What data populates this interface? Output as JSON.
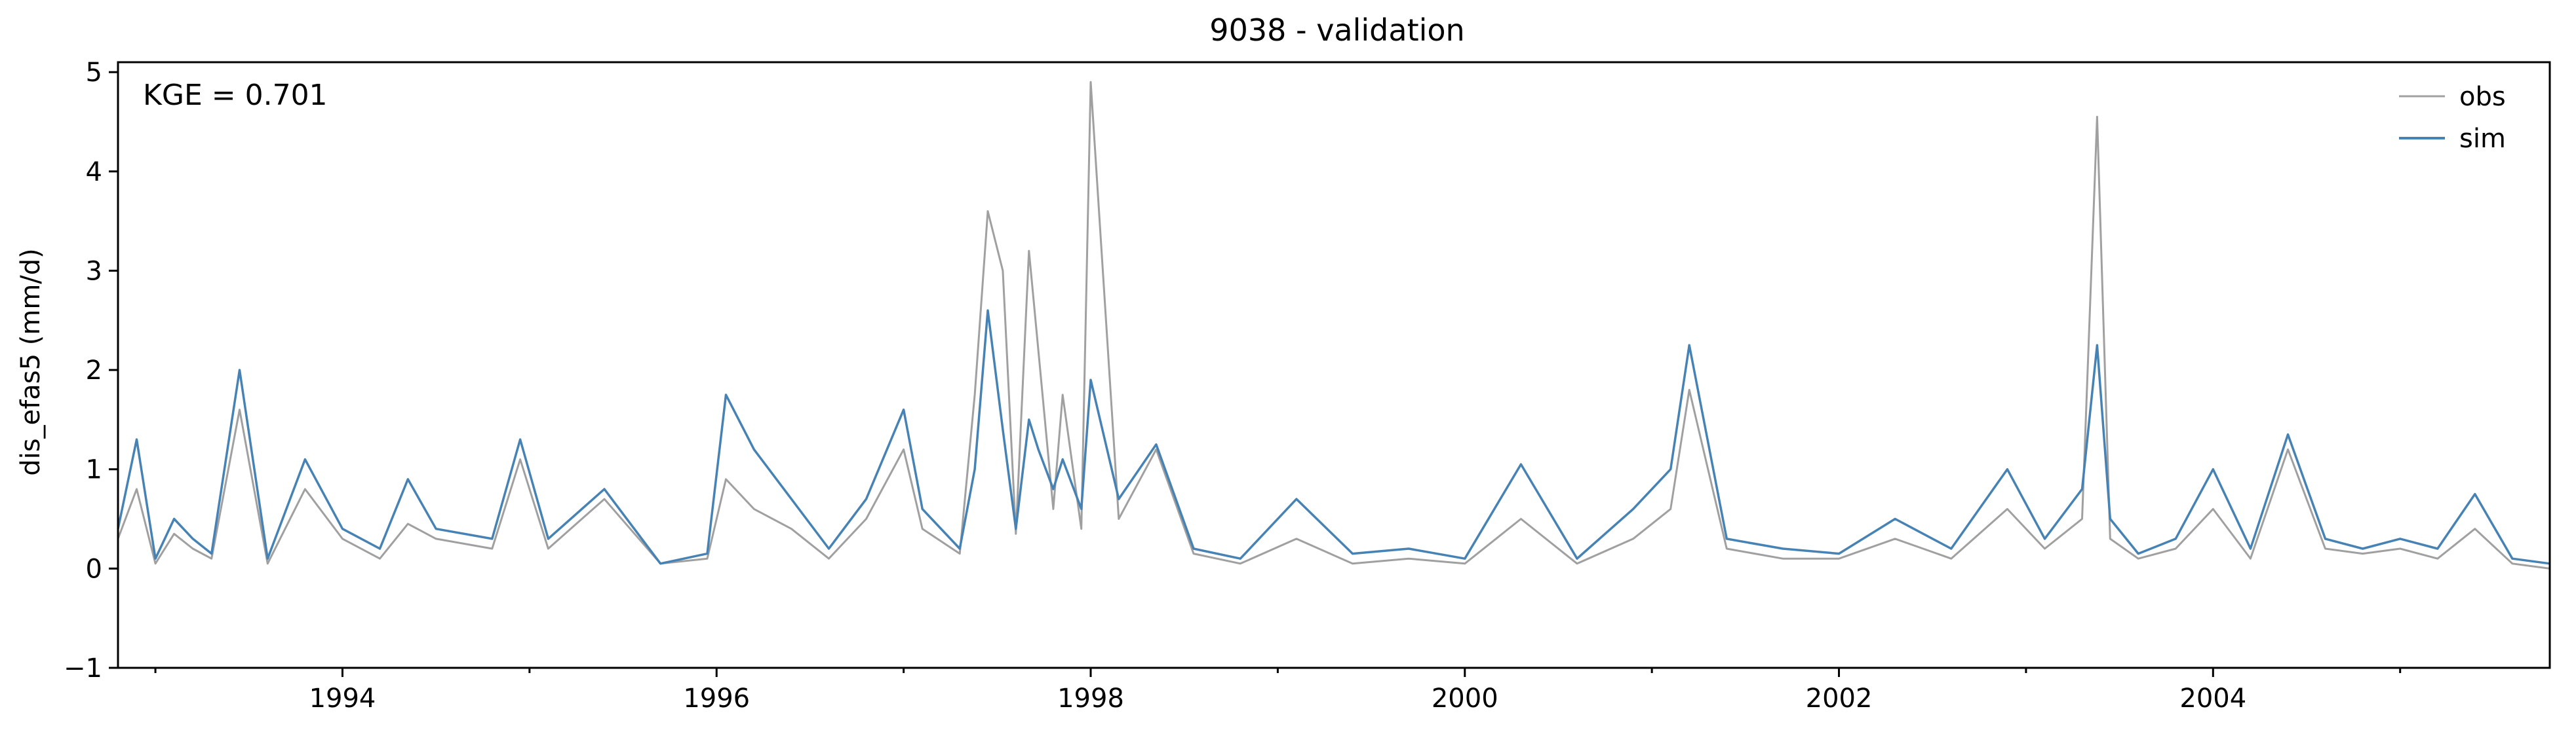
{
  "chart_data": {
    "type": "line",
    "title": "9038 - validation",
    "xlabel": "",
    "ylabel": "dis_efas5 (mm/d)",
    "annotation": "KGE = 0.701",
    "legend_position": "top-right",
    "grid": false,
    "xlim": [
      1992.8,
      2005.8
    ],
    "ylim": [
      -1,
      5.1
    ],
    "x_ticks": [
      1994,
      1996,
      1998,
      2000,
      2002,
      2004
    ],
    "x_tick_labels": [
      "1994",
      "1996",
      "1998",
      "2000",
      "2002",
      "2004"
    ],
    "y_ticks": [
      -1,
      0,
      1,
      2,
      3,
      4,
      5
    ],
    "y_tick_labels": [
      "−1",
      "0",
      "1",
      "2",
      "3",
      "4",
      "5"
    ],
    "series": [
      {
        "name": "obs",
        "color": "#a0a0a0",
        "x": [
          1992.8,
          1992.9,
          1993.0,
          1993.1,
          1993.2,
          1993.3,
          1993.45,
          1993.6,
          1993.8,
          1994.0,
          1994.2,
          1994.35,
          1994.5,
          1994.8,
          1994.95,
          1995.1,
          1995.4,
          1995.7,
          1995.95,
          1996.05,
          1996.2,
          1996.4,
          1996.6,
          1996.8,
          1997.0,
          1997.1,
          1997.3,
          1997.38,
          1997.45,
          1997.53,
          1997.6,
          1997.67,
          1997.72,
          1997.8,
          1997.85,
          1997.95,
          1998.0,
          1998.15,
          1998.35,
          1998.55,
          1998.8,
          1999.1,
          1999.4,
          1999.7,
          2000.0,
          2000.3,
          2000.6,
          2000.9,
          2001.1,
          2001.2,
          2001.4,
          2001.7,
          2002.0,
          2002.3,
          2002.6,
          2002.9,
          2003.1,
          2003.3,
          2003.38,
          2003.45,
          2003.6,
          2003.8,
          2004.0,
          2004.2,
          2004.4,
          2004.6,
          2004.8,
          2005.0,
          2005.2,
          2005.4,
          2005.6,
          2005.8
        ],
        "values": [
          0.3,
          0.8,
          0.05,
          0.35,
          0.2,
          0.1,
          1.6,
          0.05,
          0.8,
          0.3,
          0.1,
          0.45,
          0.3,
          0.2,
          1.1,
          0.2,
          0.7,
          0.05,
          0.1,
          0.9,
          0.6,
          0.4,
          0.1,
          0.5,
          1.2,
          0.4,
          0.15,
          1.75,
          3.6,
          3.0,
          0.35,
          3.2,
          2.2,
          0.6,
          1.75,
          0.4,
          4.9,
          0.5,
          1.2,
          0.15,
          0.05,
          0.3,
          0.05,
          0.1,
          0.05,
          0.5,
          0.05,
          0.3,
          0.6,
          1.8,
          0.2,
          0.1,
          0.1,
          0.3,
          0.1,
          0.6,
          0.2,
          0.5,
          4.55,
          0.3,
          0.1,
          0.2,
          0.6,
          0.1,
          1.2,
          0.2,
          0.15,
          0.2,
          0.1,
          0.4,
          0.05,
          0.0
        ]
      },
      {
        "name": "sim",
        "color": "#4682b4",
        "x": [
          1992.8,
          1992.9,
          1993.0,
          1993.1,
          1993.2,
          1993.3,
          1993.45,
          1993.6,
          1993.8,
          1994.0,
          1994.2,
          1994.35,
          1994.5,
          1994.8,
          1994.95,
          1995.1,
          1995.4,
          1995.7,
          1995.95,
          1996.05,
          1996.2,
          1996.4,
          1996.6,
          1996.8,
          1997.0,
          1997.1,
          1997.3,
          1997.38,
          1997.45,
          1997.53,
          1997.6,
          1997.67,
          1997.72,
          1997.8,
          1997.85,
          1997.95,
          1998.0,
          1998.15,
          1998.35,
          1998.55,
          1998.8,
          1999.1,
          1999.4,
          1999.7,
          2000.0,
          2000.3,
          2000.6,
          2000.9,
          2001.1,
          2001.2,
          2001.4,
          2001.7,
          2002.0,
          2002.3,
          2002.6,
          2002.9,
          2003.1,
          2003.3,
          2003.38,
          2003.45,
          2003.6,
          2003.8,
          2004.0,
          2004.2,
          2004.4,
          2004.6,
          2004.8,
          2005.0,
          2005.2,
          2005.4,
          2005.6,
          2005.8
        ],
        "values": [
          0.4,
          1.3,
          0.1,
          0.5,
          0.3,
          0.15,
          2.0,
          0.1,
          1.1,
          0.4,
          0.2,
          0.9,
          0.4,
          0.3,
          1.3,
          0.3,
          0.8,
          0.05,
          0.15,
          1.75,
          1.2,
          0.7,
          0.2,
          0.7,
          1.6,
          0.6,
          0.2,
          1.0,
          2.6,
          1.4,
          0.4,
          1.5,
          1.2,
          0.8,
          1.1,
          0.6,
          1.9,
          0.7,
          1.25,
          0.2,
          0.1,
          0.7,
          0.15,
          0.2,
          0.1,
          1.05,
          0.1,
          0.6,
          1.0,
          2.25,
          0.3,
          0.2,
          0.15,
          0.5,
          0.2,
          1.0,
          0.3,
          0.8,
          2.25,
          0.5,
          0.15,
          0.3,
          1.0,
          0.2,
          1.35,
          0.3,
          0.2,
          0.3,
          0.2,
          0.75,
          0.1,
          0.05
        ]
      }
    ]
  }
}
